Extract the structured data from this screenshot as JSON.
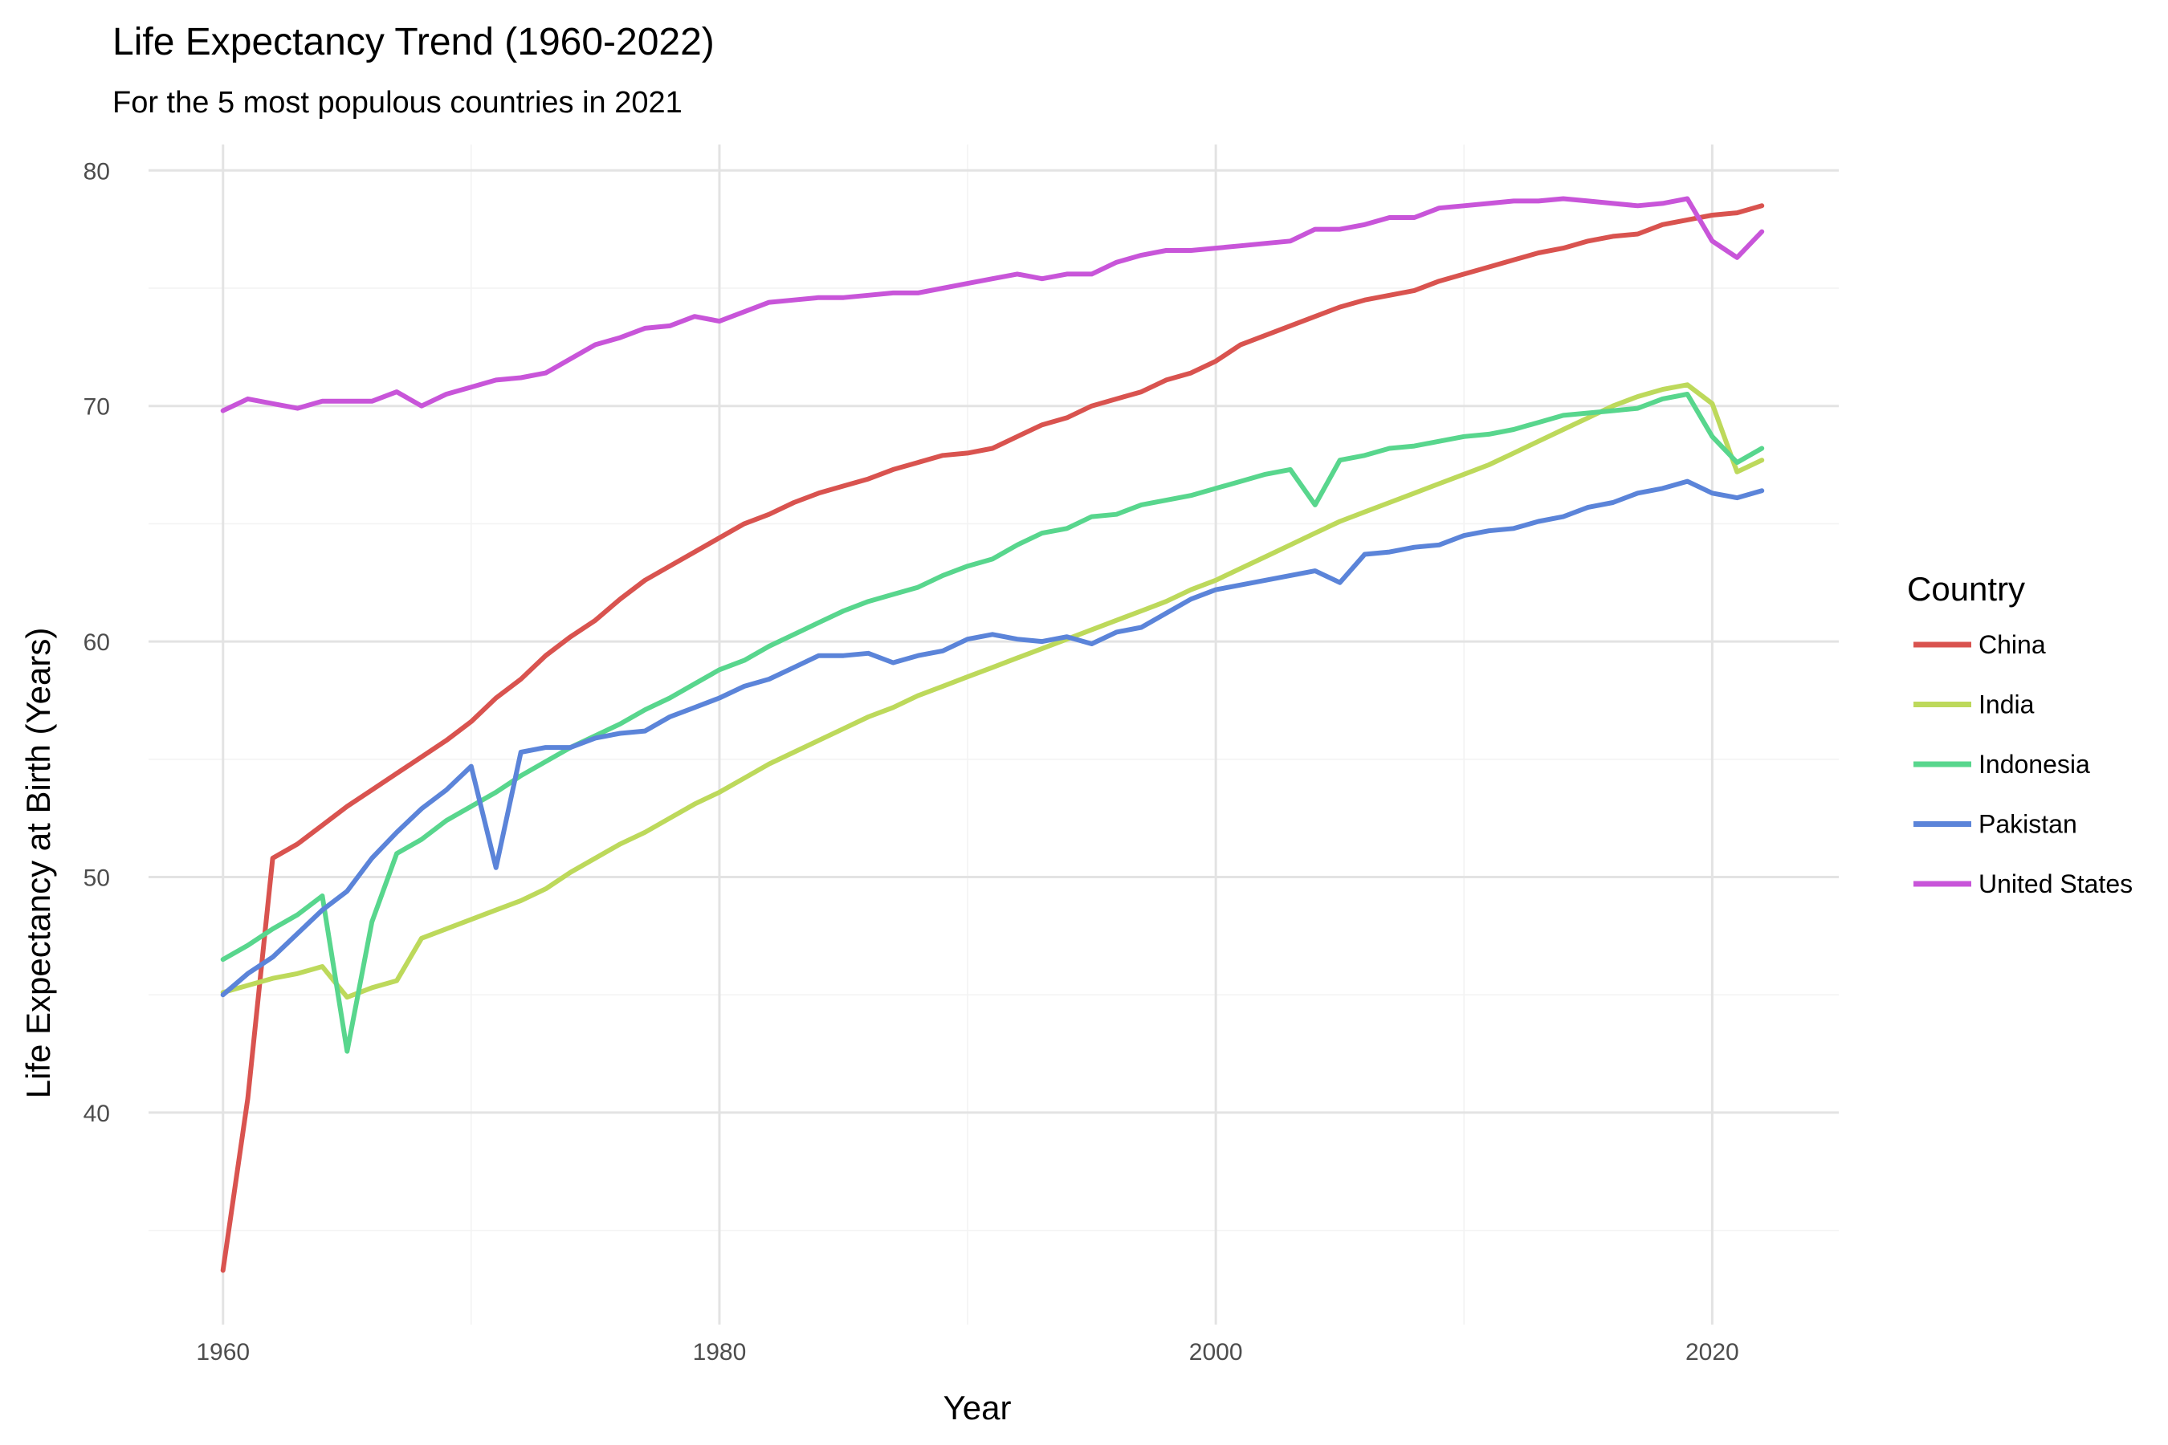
{
  "chart_data": {
    "type": "line",
    "title": "Life Expectancy Trend (1960-2022)",
    "subtitle": "For the 5 most populous countries in 2021",
    "xlabel": "Year",
    "ylabel": "Life Expectancy at Birth (Years)",
    "xlim": [
      1960,
      2022
    ],
    "ylim": [
      33.0,
      80.0
    ],
    "x_ticks": [
      1960,
      1980,
      2000,
      2020
    ],
    "y_ticks": [
      40,
      50,
      60,
      70,
      80
    ],
    "grid": true,
    "legend": {
      "title": "Country",
      "position": "right"
    },
    "x": [
      1960,
      1961,
      1962,
      1963,
      1964,
      1965,
      1966,
      1967,
      1968,
      1969,
      1970,
      1971,
      1972,
      1973,
      1974,
      1975,
      1976,
      1977,
      1978,
      1979,
      1980,
      1981,
      1982,
      1983,
      1984,
      1985,
      1986,
      1987,
      1988,
      1989,
      1990,
      1991,
      1992,
      1993,
      1994,
      1995,
      1996,
      1997,
      1998,
      1999,
      2000,
      2001,
      2002,
      2003,
      2004,
      2005,
      2006,
      2007,
      2008,
      2009,
      2010,
      2011,
      2012,
      2013,
      2014,
      2015,
      2016,
      2017,
      2018,
      2019,
      2020,
      2021,
      2022
    ],
    "series": [
      {
        "name": "China",
        "color": "#d9534f",
        "values": [
          33.3,
          40.6,
          50.8,
          51.4,
          52.2,
          53.0,
          53.7,
          54.4,
          55.1,
          55.8,
          56.6,
          57.6,
          58.4,
          59.4,
          60.2,
          60.9,
          61.8,
          62.6,
          63.2,
          63.8,
          64.4,
          65.0,
          65.4,
          65.9,
          66.3,
          66.6,
          66.9,
          67.3,
          67.6,
          67.9,
          68.0,
          68.2,
          68.7,
          69.2,
          69.5,
          70.0,
          70.3,
          70.6,
          71.1,
          71.4,
          71.9,
          72.6,
          73.0,
          73.4,
          73.8,
          74.2,
          74.5,
          74.7,
          74.9,
          75.3,
          75.6,
          75.9,
          76.2,
          76.5,
          76.7,
          77.0,
          77.2,
          77.3,
          77.7,
          77.9,
          78.1,
          78.2,
          78.5
        ]
      },
      {
        "name": "India",
        "color": "#bdd95b",
        "values": [
          45.1,
          45.4,
          45.7,
          45.9,
          46.2,
          44.9,
          45.3,
          45.6,
          47.4,
          47.8,
          48.2,
          48.6,
          49.0,
          49.5,
          50.2,
          50.8,
          51.4,
          51.9,
          52.5,
          53.1,
          53.6,
          54.2,
          54.8,
          55.3,
          55.8,
          56.3,
          56.8,
          57.2,
          57.7,
          58.1,
          58.5,
          58.9,
          59.3,
          59.7,
          60.1,
          60.5,
          60.9,
          61.3,
          61.7,
          62.2,
          62.6,
          63.1,
          63.6,
          64.1,
          64.6,
          65.1,
          65.5,
          65.9,
          66.3,
          66.7,
          67.1,
          67.5,
          68.0,
          68.5,
          69.0,
          69.5,
          70.0,
          70.4,
          70.7,
          70.9,
          70.1,
          67.2,
          67.7
        ]
      },
      {
        "name": "Indonesia",
        "color": "#58d68d",
        "values": [
          46.5,
          47.1,
          47.8,
          48.4,
          49.2,
          42.6,
          48.1,
          51.0,
          51.6,
          52.4,
          53.0,
          53.6,
          54.3,
          54.9,
          55.5,
          56.0,
          56.5,
          57.1,
          57.6,
          58.2,
          58.8,
          59.2,
          59.8,
          60.3,
          60.8,
          61.3,
          61.7,
          62.0,
          62.3,
          62.8,
          63.2,
          63.5,
          64.1,
          64.6,
          64.8,
          65.3,
          65.4,
          65.8,
          66.0,
          66.2,
          66.5,
          66.8,
          67.1,
          67.3,
          65.8,
          67.7,
          67.9,
          68.2,
          68.3,
          68.5,
          68.7,
          68.8,
          69.0,
          69.3,
          69.6,
          69.7,
          69.8,
          69.9,
          70.3,
          70.5,
          68.7,
          67.6,
          68.2
        ]
      },
      {
        "name": "Pakistan",
        "color": "#5b84d9",
        "values": [
          45.0,
          45.9,
          46.6,
          47.6,
          48.6,
          49.4,
          50.8,
          51.9,
          52.9,
          53.7,
          54.7,
          50.4,
          55.3,
          55.5,
          55.5,
          55.9,
          56.1,
          56.2,
          56.8,
          57.2,
          57.6,
          58.1,
          58.4,
          58.9,
          59.4,
          59.4,
          59.5,
          59.1,
          59.4,
          59.6,
          60.1,
          60.3,
          60.1,
          60.0,
          60.2,
          59.9,
          60.4,
          60.6,
          61.2,
          61.8,
          62.2,
          62.4,
          62.6,
          62.8,
          63.0,
          62.5,
          63.7,
          63.8,
          64.0,
          64.1,
          64.5,
          64.7,
          64.8,
          65.1,
          65.3,
          65.7,
          65.9,
          66.3,
          66.5,
          66.8,
          66.3,
          66.1,
          66.4
        ]
      },
      {
        "name": "United States",
        "color": "#c855d9",
        "values": [
          69.8,
          70.3,
          70.1,
          69.9,
          70.2,
          70.2,
          70.2,
          70.6,
          70.0,
          70.5,
          70.8,
          71.1,
          71.2,
          71.4,
          72.0,
          72.6,
          72.9,
          73.3,
          73.4,
          73.8,
          73.6,
          74.0,
          74.4,
          74.5,
          74.6,
          74.6,
          74.7,
          74.8,
          74.8,
          75.0,
          75.2,
          75.4,
          75.6,
          75.4,
          75.6,
          75.6,
          76.1,
          76.4,
          76.6,
          76.6,
          76.7,
          76.8,
          76.9,
          77.0,
          77.5,
          77.5,
          77.7,
          78.0,
          78.0,
          78.4,
          78.5,
          78.6,
          78.7,
          78.7,
          78.8,
          78.7,
          78.6,
          78.5,
          78.6,
          78.8,
          77.0,
          76.3,
          77.4
        ]
      }
    ]
  }
}
